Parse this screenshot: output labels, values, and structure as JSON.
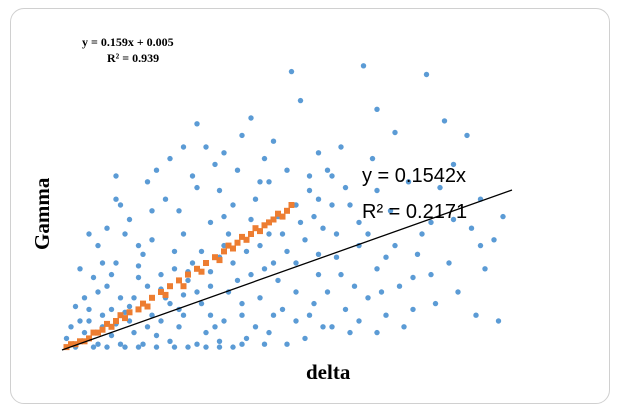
{
  "chart_data": {
    "type": "scatter",
    "title": "",
    "xlabel": "delta",
    "ylabel": "Gamma",
    "xlim": [
      0,
      1
    ],
    "ylim": [
      0,
      1.0
    ],
    "grid": false,
    "legend": "none",
    "series": [
      {
        "color": "#5b9bd5",
        "marker": "circle",
        "points": [
          [
            0.51,
            0.96
          ],
          [
            0.67,
            0.98
          ],
          [
            0.81,
            0.95
          ],
          [
            0.53,
            0.86
          ],
          [
            0.7,
            0.83
          ],
          [
            0.85,
            0.79
          ],
          [
            0.3,
            0.78
          ],
          [
            0.42,
            0.8
          ],
          [
            0.47,
            0.72
          ],
          [
            0.24,
            0.66
          ],
          [
            0.27,
            0.7
          ],
          [
            0.36,
            0.68
          ],
          [
            0.5,
            0.62
          ],
          [
            0.6,
            0.6
          ],
          [
            0.74,
            0.75
          ],
          [
            0.9,
            0.74
          ],
          [
            0.93,
            0.52
          ],
          [
            0.87,
            0.45
          ],
          [
            0.8,
            0.4
          ],
          [
            0.78,
            0.25
          ],
          [
            0.96,
            0.38
          ],
          [
            0.93,
            0.36
          ],
          [
            0.87,
            0.64
          ],
          [
            0.7,
            0.55
          ],
          [
            0.64,
            0.5
          ],
          [
            0.66,
            0.36
          ],
          [
            0.57,
            0.33
          ],
          [
            0.55,
            0.55
          ],
          [
            0.46,
            0.58
          ],
          [
            0.35,
            0.55
          ],
          [
            0.3,
            0.56
          ],
          [
            0.38,
            0.5
          ],
          [
            0.42,
            0.45
          ],
          [
            0.33,
            0.44
          ],
          [
            0.27,
            0.4
          ],
          [
            0.25,
            0.34
          ],
          [
            0.2,
            0.38
          ],
          [
            0.18,
            0.33
          ],
          [
            0.15,
            0.45
          ],
          [
            0.14,
            0.4
          ],
          [
            0.17,
            0.25
          ],
          [
            0.12,
            0.3
          ],
          [
            0.1,
            0.22
          ],
          [
            0.09,
            0.3
          ],
          [
            0.07,
            0.25
          ],
          [
            0.05,
            0.18
          ],
          [
            0.03,
            0.15
          ],
          [
            0.06,
            0.1
          ],
          [
            0.11,
            0.14
          ],
          [
            0.16,
            0.18
          ],
          [
            0.22,
            0.21
          ],
          [
            0.28,
            0.24
          ],
          [
            0.33,
            0.27
          ],
          [
            0.38,
            0.3
          ],
          [
            0.44,
            0.36
          ],
          [
            0.49,
            0.4
          ],
          [
            0.52,
            0.3
          ],
          [
            0.48,
            0.24
          ],
          [
            0.44,
            0.18
          ],
          [
            0.4,
            0.12
          ],
          [
            0.36,
            0.1
          ],
          [
            0.32,
            0.06
          ],
          [
            0.26,
            0.08
          ],
          [
            0.21,
            0.05
          ],
          [
            0.16,
            0.06
          ],
          [
            0.11,
            0.05
          ],
          [
            0.06,
            0.04
          ],
          [
            0.04,
            0.03
          ],
          [
            0.08,
            0.02
          ],
          [
            0.13,
            0.02
          ],
          [
            0.18,
            0.02
          ],
          [
            0.24,
            0.03
          ],
          [
            0.3,
            0.02
          ],
          [
            0.35,
            0.03
          ],
          [
            0.41,
            0.04
          ],
          [
            0.46,
            0.06
          ],
          [
            0.52,
            0.1
          ],
          [
            0.56,
            0.16
          ],
          [
            0.59,
            0.2
          ],
          [
            0.62,
            0.26
          ],
          [
            0.63,
            0.14
          ],
          [
            0.58,
            0.08
          ],
          [
            0.54,
            0.04
          ],
          [
            0.5,
            0.02
          ],
          [
            0.45,
            0.02
          ],
          [
            0.4,
            0.02
          ],
          [
            0.68,
            0.18
          ],
          [
            0.72,
            0.12
          ],
          [
            0.76,
            0.08
          ],
          [
            0.64,
            0.06
          ],
          [
            0.7,
            0.28
          ],
          [
            0.61,
            0.4
          ],
          [
            0.56,
            0.46
          ],
          [
            0.52,
            0.5
          ],
          [
            0.43,
            0.52
          ],
          [
            0.39,
            0.62
          ],
          [
            0.34,
            0.64
          ],
          [
            0.29,
            0.6
          ],
          [
            0.23,
            0.52
          ],
          [
            0.2,
            0.48
          ],
          [
            0.19,
            0.58
          ],
          [
            0.13,
            0.5
          ],
          [
            0.1,
            0.42
          ],
          [
            0.08,
            0.36
          ],
          [
            0.04,
            0.28
          ],
          [
            0.02,
            0.08
          ],
          [
            0.01,
            0.04
          ],
          [
            0.15,
            0.1
          ],
          [
            0.2,
            0.12
          ],
          [
            0.26,
            0.14
          ],
          [
            0.31,
            0.16
          ],
          [
            0.37,
            0.2
          ],
          [
            0.42,
            0.26
          ],
          [
            0.47,
            0.3
          ],
          [
            0.57,
            0.26
          ],
          [
            0.61,
            0.32
          ],
          [
            0.66,
            0.44
          ],
          [
            0.73,
            0.48
          ],
          [
            0.77,
            0.58
          ],
          [
            0.84,
            0.56
          ],
          [
            0.98,
            0.46
          ],
          [
            0.97,
            0.1
          ],
          [
            0.92,
            0.12
          ],
          [
            0.86,
            0.3
          ],
          [
            0.88,
            0.2
          ],
          [
            0.82,
            0.26
          ],
          [
            0.74,
            0.36
          ],
          [
            0.69,
            0.66
          ],
          [
            0.62,
            0.7
          ],
          [
            0.57,
            0.68
          ],
          [
            0.45,
            0.66
          ],
          [
            0.4,
            0.74
          ],
          [
            0.32,
            0.7
          ],
          [
            0.21,
            0.62
          ],
          [
            0.12,
            0.6
          ],
          [
            0.12,
            0.52
          ],
          [
            0.06,
            0.4
          ],
          [
            0.37,
            0.4
          ],
          [
            0.31,
            0.34
          ],
          [
            0.25,
            0.28
          ],
          [
            0.19,
            0.22
          ],
          [
            0.13,
            0.18
          ],
          [
            0.09,
            0.12
          ],
          [
            0.05,
            0.06
          ],
          [
            0.02,
            0.02
          ],
          [
            0.03,
            0.01
          ],
          [
            0.07,
            0.01
          ],
          [
            0.1,
            0.01
          ],
          [
            0.14,
            0.01
          ],
          [
            0.17,
            0.01
          ],
          [
            0.21,
            0.01
          ],
          [
            0.25,
            0.01
          ],
          [
            0.28,
            0.01
          ],
          [
            0.32,
            0.01
          ],
          [
            0.35,
            0.01
          ],
          [
            0.38,
            0.01
          ],
          [
            0.06,
            0.14
          ],
          [
            0.09,
            0.08
          ],
          [
            0.14,
            0.13
          ],
          [
            0.18,
            0.16
          ],
          [
            0.23,
            0.18
          ],
          [
            0.27,
            0.19
          ],
          [
            0.33,
            0.22
          ],
          [
            0.39,
            0.24
          ],
          [
            0.45,
            0.28
          ],
          [
            0.5,
            0.34
          ],
          [
            0.54,
            0.38
          ],
          [
            0.58,
            0.42
          ],
          [
            0.6,
            0.5
          ],
          [
            0.48,
            0.46
          ],
          [
            0.43,
            0.42
          ],
          [
            0.36,
            0.36
          ],
          [
            0.29,
            0.3
          ],
          [
            0.22,
            0.26
          ],
          [
            0.17,
            0.29
          ],
          [
            0.11,
            0.26
          ],
          [
            0.08,
            0.2
          ],
          [
            0.04,
            0.1
          ],
          [
            0.52,
            0.2
          ],
          [
            0.49,
            0.14
          ],
          [
            0.55,
            0.12
          ],
          [
            0.6,
            0.08
          ],
          [
            0.66,
            0.1
          ],
          [
            0.7,
            0.06
          ],
          [
            0.78,
            0.14
          ],
          [
            0.83,
            0.16
          ],
          [
            0.55,
            0.6
          ],
          [
            0.59,
            0.62
          ],
          [
            0.26,
            0.48
          ],
          [
            0.17,
            0.36
          ],
          [
            0.44,
            0.58
          ],
          [
            0.36,
            0.46
          ],
          [
            0.27,
            0.12
          ],
          [
            0.34,
            0.08
          ],
          [
            0.43,
            0.08
          ],
          [
            0.47,
            0.12
          ],
          [
            0.22,
            0.1
          ],
          [
            0.15,
            0.15
          ],
          [
            0.3,
            0.2
          ],
          [
            0.4,
            0.16
          ],
          [
            0.33,
            0.12
          ],
          [
            0.19,
            0.08
          ],
          [
            0.12,
            0.09
          ],
          [
            0.24,
            0.16
          ],
          [
            0.28,
            0.27
          ],
          [
            0.35,
            0.32
          ],
          [
            0.41,
            0.34
          ],
          [
            0.46,
            0.4
          ],
          [
            0.53,
            0.44
          ],
          [
            0.57,
            0.52
          ],
          [
            0.63,
            0.56
          ],
          [
            0.68,
            0.4
          ],
          [
            0.72,
            0.32
          ],
          [
            0.75,
            0.22
          ],
          [
            0.71,
            0.2
          ],
          [
            0.65,
            0.22
          ],
          [
            0.79,
            0.33
          ],
          [
            0.82,
            0.44
          ],
          [
            0.91,
            0.42
          ],
          [
            0.94,
            0.28
          ]
        ]
      },
      {
        "color": "#ed7d31",
        "marker": "square",
        "points": [
          [
            0.01,
            0.01
          ],
          [
            0.02,
            0.02
          ],
          [
            0.03,
            0.02
          ],
          [
            0.04,
            0.03
          ],
          [
            0.05,
            0.03
          ],
          [
            0.06,
            0.04
          ],
          [
            0.07,
            0.06
          ],
          [
            0.08,
            0.06
          ],
          [
            0.09,
            0.07
          ],
          [
            0.1,
            0.09
          ],
          [
            0.11,
            0.08
          ],
          [
            0.12,
            0.1
          ],
          [
            0.13,
            0.12
          ],
          [
            0.14,
            0.11
          ],
          [
            0.15,
            0.13
          ],
          [
            0.17,
            0.14
          ],
          [
            0.18,
            0.16
          ],
          [
            0.19,
            0.15
          ],
          [
            0.2,
            0.18
          ],
          [
            0.22,
            0.2
          ],
          [
            0.23,
            0.19
          ],
          [
            0.24,
            0.22
          ],
          [
            0.26,
            0.24
          ],
          [
            0.27,
            0.22
          ],
          [
            0.28,
            0.26
          ],
          [
            0.3,
            0.28
          ],
          [
            0.31,
            0.27
          ],
          [
            0.32,
            0.3
          ],
          [
            0.34,
            0.32
          ],
          [
            0.35,
            0.31
          ],
          [
            0.36,
            0.34
          ],
          [
            0.37,
            0.36
          ],
          [
            0.38,
            0.35
          ],
          [
            0.39,
            0.37
          ],
          [
            0.4,
            0.39
          ],
          [
            0.41,
            0.38
          ],
          [
            0.42,
            0.4
          ],
          [
            0.43,
            0.42
          ],
          [
            0.44,
            0.41
          ],
          [
            0.45,
            0.43
          ],
          [
            0.46,
            0.44
          ],
          [
            0.47,
            0.45
          ],
          [
            0.48,
            0.47
          ],
          [
            0.49,
            0.46
          ],
          [
            0.5,
            0.48
          ],
          [
            0.51,
            0.5
          ]
        ]
      }
    ],
    "annotations": [
      {
        "text_1": "y = 0.159x + 0.005",
        "text_2": "R² = 0.939",
        "style": "small",
        "position": "top-left"
      },
      {
        "text_1": "y = 0.1542x",
        "text_2": "R² = 0.2171",
        "style": "large",
        "position": "right"
      }
    ],
    "trendline": {
      "slope": 0.1542,
      "intercept": 0,
      "color": "#000000"
    }
  }
}
